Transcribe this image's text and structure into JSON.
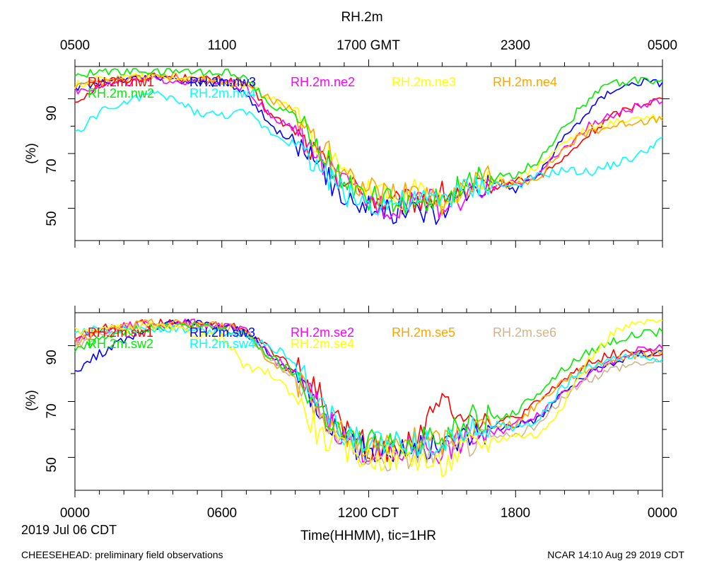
{
  "title": "RH.2m",
  "top_axis": {
    "ticks": [
      "0500",
      "1100",
      "1700 GMT",
      "2300",
      "0500"
    ]
  },
  "bottom_axis": {
    "ticks": [
      "0000",
      "0600",
      "1200 CDT",
      "1800",
      "0000"
    ],
    "xlabel": "Time(HHMM), tic=1HR"
  },
  "date_label": "2019 Jul 06 CDT",
  "footer_left": "CHEESEHEAD: preliminary field observations",
  "footer_right": "NCAR 14:10 Aug 29 2019 CDT",
  "chart_data": [
    {
      "type": "line",
      "ylabel": "(%)",
      "xlim": [
        0,
        24
      ],
      "ylim": [
        40,
        100
      ],
      "yticks": [
        50,
        70,
        90
      ],
      "x_hours": [
        0,
        1,
        2,
        3,
        4,
        5,
        6,
        7,
        8,
        9,
        10,
        11,
        12,
        13,
        14,
        15,
        16,
        17,
        18,
        19,
        20,
        21,
        22,
        23,
        24
      ],
      "series": [
        {
          "name": "RH.2m.nw1",
          "color": "#ff0000",
          "values": [
            89,
            95,
            97,
            98,
            98,
            97,
            97,
            96,
            84,
            78,
            68,
            60,
            54,
            51,
            53,
            55,
            56,
            57,
            60,
            62,
            68,
            77,
            84,
            88,
            90
          ]
        },
        {
          "name": "RH.2m.nw3",
          "color": "#0000ff",
          "values": [
            94,
            96,
            97,
            98,
            97,
            96,
            96,
            92,
            80,
            75,
            64,
            55,
            51,
            49,
            50,
            48,
            57,
            60,
            57,
            63,
            76,
            86,
            94,
            96,
            96
          ]
        },
        {
          "name": "RH.2m.ne2",
          "color": "#ff00ff",
          "values": [
            93,
            95,
            96,
            97,
            97,
            96,
            96,
            94,
            83,
            79,
            68,
            58,
            53,
            50,
            55,
            50,
            55,
            58,
            59,
            63,
            72,
            80,
            84,
            87,
            89
          ]
        },
        {
          "name": "RH.2m.ne3",
          "color": "#ffff00",
          "values": [
            95,
            97,
            98,
            98,
            98,
            97,
            96,
            95,
            90,
            86,
            72,
            62,
            56,
            53,
            56,
            52,
            56,
            60,
            60,
            66,
            74,
            79,
            81,
            83,
            83
          ]
        },
        {
          "name": "RH.2m.ne4",
          "color": "#ffa500",
          "values": [
            94,
            96,
            97,
            98,
            98,
            97,
            96,
            95,
            90,
            85,
            74,
            63,
            57,
            55,
            57,
            52,
            58,
            61,
            58,
            62,
            72,
            78,
            80,
            82,
            82
          ]
        },
        {
          "name": "RH.2m.nw2",
          "color": "#00ee00",
          "values": [
            98,
            100,
            100,
            100,
            100,
            100,
            100,
            98,
            88,
            84,
            70,
            60,
            54,
            52,
            53,
            52,
            60,
            61,
            62,
            68,
            80,
            90,
            96,
            97,
            97
          ]
        },
        {
          "name": "RH.2m.nw4",
          "color": "#00ffff",
          "values": [
            77,
            85,
            88,
            92,
            90,
            85,
            84,
            85,
            78,
            73,
            65,
            56,
            52,
            52,
            52,
            54,
            57,
            59,
            58,
            62,
            64,
            63,
            66,
            69,
            76
          ]
        }
      ]
    },
    {
      "type": "line",
      "ylabel": "(%)",
      "xlim": [
        0,
        24
      ],
      "ylim": [
        40,
        100
      ],
      "yticks": [
        50,
        70,
        90
      ],
      "x_hours": [
        0,
        1,
        2,
        3,
        4,
        5,
        6,
        7,
        8,
        9,
        10,
        11,
        12,
        13,
        14,
        15,
        16,
        17,
        18,
        19,
        20,
        21,
        22,
        23,
        24
      ],
      "series": [
        {
          "name": "RH.2m.sw1",
          "color": "#ff0000",
          "values": [
            93,
            96,
            97,
            98,
            98,
            98,
            97,
            96,
            88,
            82,
            72,
            60,
            54,
            52,
            58,
            70,
            66,
            62,
            64,
            70,
            78,
            84,
            87,
            88,
            87
          ]
        },
        {
          "name": "RH.2m.sw3",
          "color": "#0000ff",
          "values": [
            81,
            87,
            92,
            96,
            98,
            98,
            97,
            95,
            86,
            80,
            68,
            56,
            52,
            52,
            53,
            54,
            58,
            60,
            62,
            64,
            74,
            80,
            84,
            87,
            88
          ]
        },
        {
          "name": "RH.2m.se2",
          "color": "#ff00ff",
          "values": [
            92,
            95,
            97,
            98,
            98,
            98,
            97,
            95,
            86,
            80,
            68,
            57,
            52,
            50,
            55,
            52,
            57,
            58,
            62,
            66,
            74,
            80,
            84,
            88,
            89
          ]
        },
        {
          "name": "RH.2m.se5",
          "color": "#ffa500",
          "values": [
            91,
            95,
            97,
            98,
            98,
            98,
            97,
            95,
            84,
            78,
            66,
            58,
            54,
            54,
            56,
            55,
            60,
            62,
            62,
            70,
            78,
            82,
            85,
            87,
            88
          ]
        },
        {
          "name": "RH.2m.se6",
          "color": "#d2b48c",
          "values": [
            90,
            94,
            96,
            97,
            97,
            97,
            96,
            94,
            85,
            78,
            66,
            56,
            50,
            48,
            52,
            50,
            55,
            57,
            58,
            62,
            72,
            78,
            82,
            84,
            84
          ]
        },
        {
          "name": "RH.2m.sw2",
          "color": "#00ee00",
          "values": [
            88,
            92,
            95,
            96,
            97,
            97,
            96,
            94,
            86,
            80,
            68,
            58,
            55,
            55,
            56,
            56,
            64,
            64,
            66,
            74,
            82,
            88,
            92,
            94,
            95
          ]
        },
        {
          "name": "RH.2m.sw4",
          "color": "#00ffff",
          "values": [
            94,
            96,
            96,
            96,
            96,
            95,
            95,
            94,
            90,
            84,
            70,
            58,
            55,
            54,
            55,
            56,
            60,
            62,
            60,
            64,
            76,
            82,
            85,
            86,
            85
          ]
        },
        {
          "name": "RH.2m.se4",
          "color": "#ffff00",
          "values": [
            95,
            96,
            96,
            97,
            96,
            94,
            93,
            82,
            80,
            72,
            58,
            52,
            50,
            50,
            50,
            46,
            54,
            56,
            58,
            58,
            70,
            85,
            95,
            98,
            99
          ]
        }
      ]
    }
  ]
}
